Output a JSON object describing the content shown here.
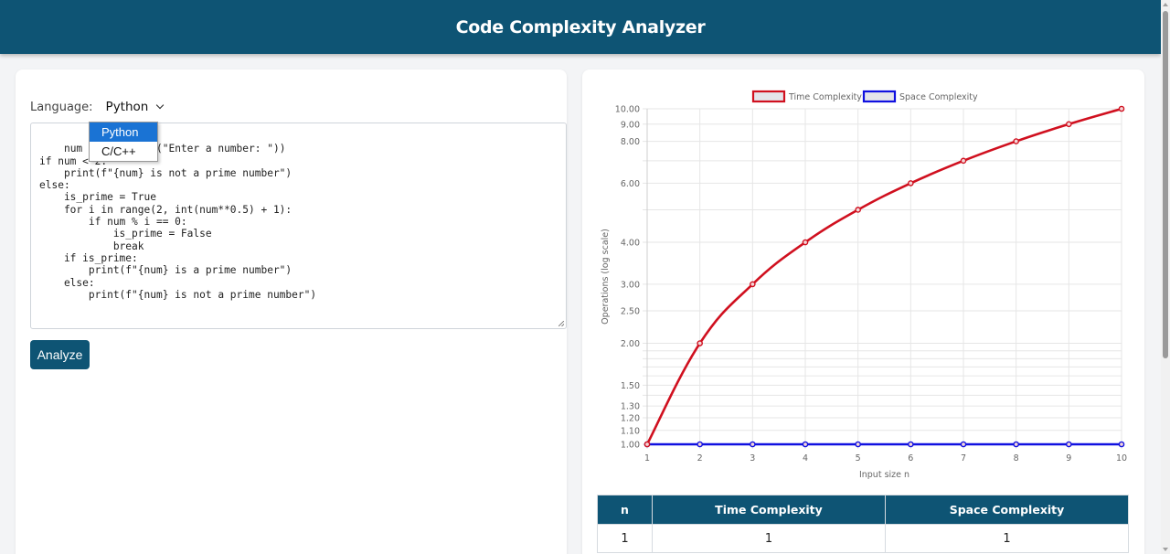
{
  "header": {
    "title": "Code Complexity Analyzer"
  },
  "editor": {
    "language_label": "Language:",
    "language_selected": "Python",
    "language_options": [
      "Python",
      "C/C++"
    ],
    "code": "num = int(input(\"Enter a number: \"))\nif num < 2:\n    print(f\"{num} is not a prime number\")\nelse:\n    is_prime = True\n    for i in range(2, int(num**0.5) + 1):\n        if num % i == 0:\n            is_prime = False\n            break\n    if is_prime:\n        print(f\"{num} is a prime number\")\n    else:\n        print(f\"{num} is not a prime number\")",
    "analyze_label": "Analyze"
  },
  "colors": {
    "brand": "#0e5474",
    "time_series": "#d0101f",
    "space_series": "#1010e0",
    "dropdown_highlight": "#1a73d4"
  },
  "chart_data": {
    "type": "line",
    "title": "",
    "xlabel": "Input size n",
    "ylabel": "Operations (log scale)",
    "x": [
      1,
      2,
      3,
      4,
      5,
      6,
      7,
      8,
      9,
      10
    ],
    "series": [
      {
        "name": "Time Complexity",
        "color": "#d0101f",
        "values": [
          1,
          2,
          3,
          4,
          5,
          6,
          7,
          8,
          9,
          10
        ]
      },
      {
        "name": "Space Complexity",
        "color": "#1010e0",
        "values": [
          1,
          1,
          1,
          1,
          1,
          1,
          1,
          1,
          1,
          1
        ]
      }
    ],
    "y_scale": "log",
    "ylim": [
      1,
      10
    ],
    "y_tick_labels": [
      "1.00",
      "1.10",
      "1.20",
      "1.30",
      "1.50",
      "2.00",
      "2.50",
      "3.00",
      "4.00",
      "6.00",
      "8.00",
      "9.00",
      "10.00"
    ],
    "x_tick_labels": [
      "1",
      "2",
      "3",
      "4",
      "5",
      "6",
      "7",
      "8",
      "9",
      "10"
    ],
    "legend": [
      "Time Complexity",
      "Space Complexity"
    ],
    "legend_position": "top",
    "grid": true
  },
  "table": {
    "headers": [
      "n",
      "Time Complexity",
      "Space Complexity"
    ],
    "rows": [
      [
        "1",
        "1",
        "1"
      ]
    ]
  }
}
